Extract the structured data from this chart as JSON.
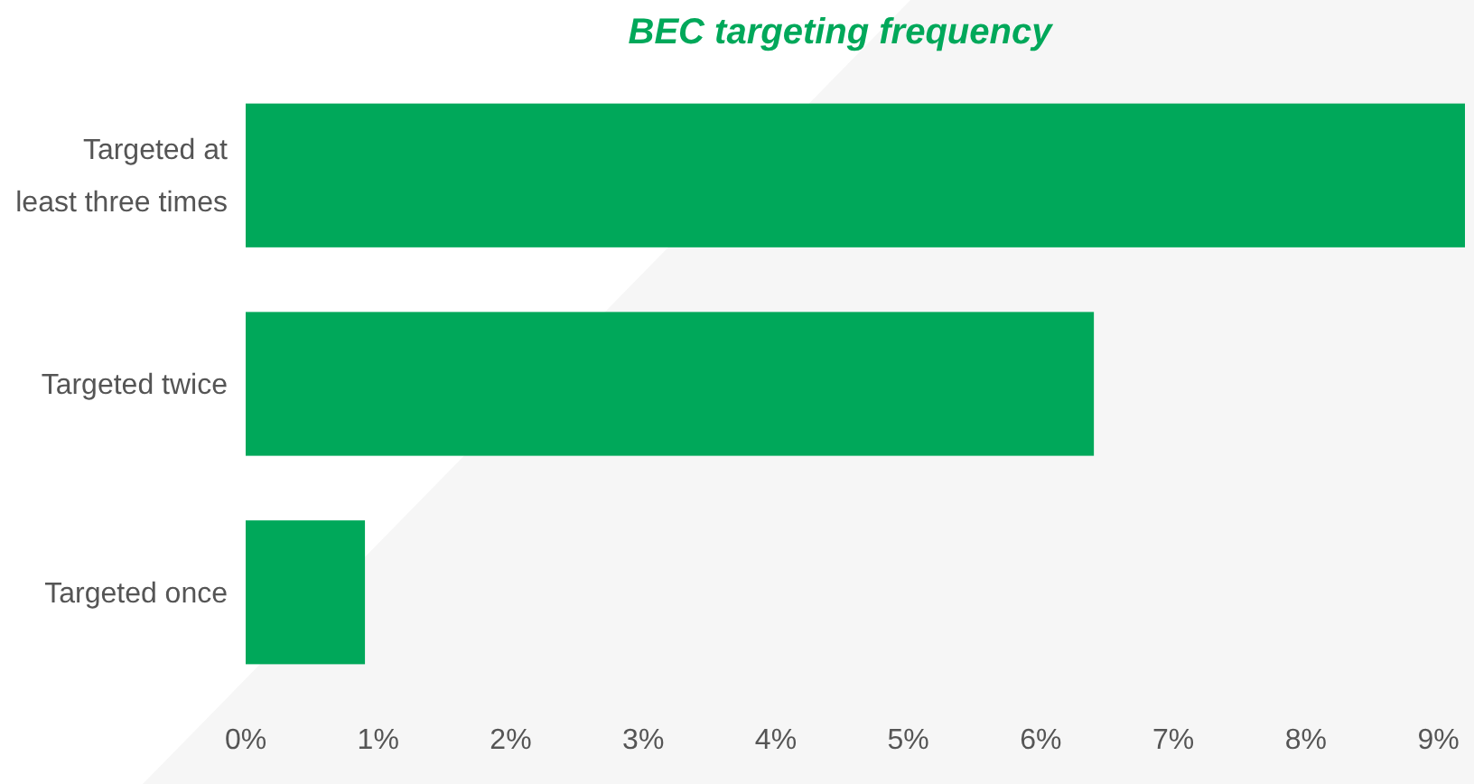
{
  "chart_data": {
    "type": "bar",
    "orientation": "horizontal",
    "title": "BEC targeting frequency",
    "categories": [
      "Targeted at least three times",
      "Targeted twice",
      "Targeted once"
    ],
    "values": [
      9.2,
      6.4,
      0.9
    ],
    "color": "#00a85a",
    "xlim": [
      0,
      9.2
    ],
    "xticks": [
      {
        "value": 0,
        "label": "0%"
      },
      {
        "value": 1,
        "label": "1%"
      },
      {
        "value": 2,
        "label": "2%"
      },
      {
        "value": 3,
        "label": "3%"
      },
      {
        "value": 4,
        "label": "4%"
      },
      {
        "value": 5,
        "label": "5%"
      },
      {
        "value": 6,
        "label": "6%"
      },
      {
        "value": 7,
        "label": "7%"
      },
      {
        "value": 8,
        "label": "8%"
      },
      {
        "value": 9,
        "label": "9%"
      }
    ],
    "grid": false
  }
}
